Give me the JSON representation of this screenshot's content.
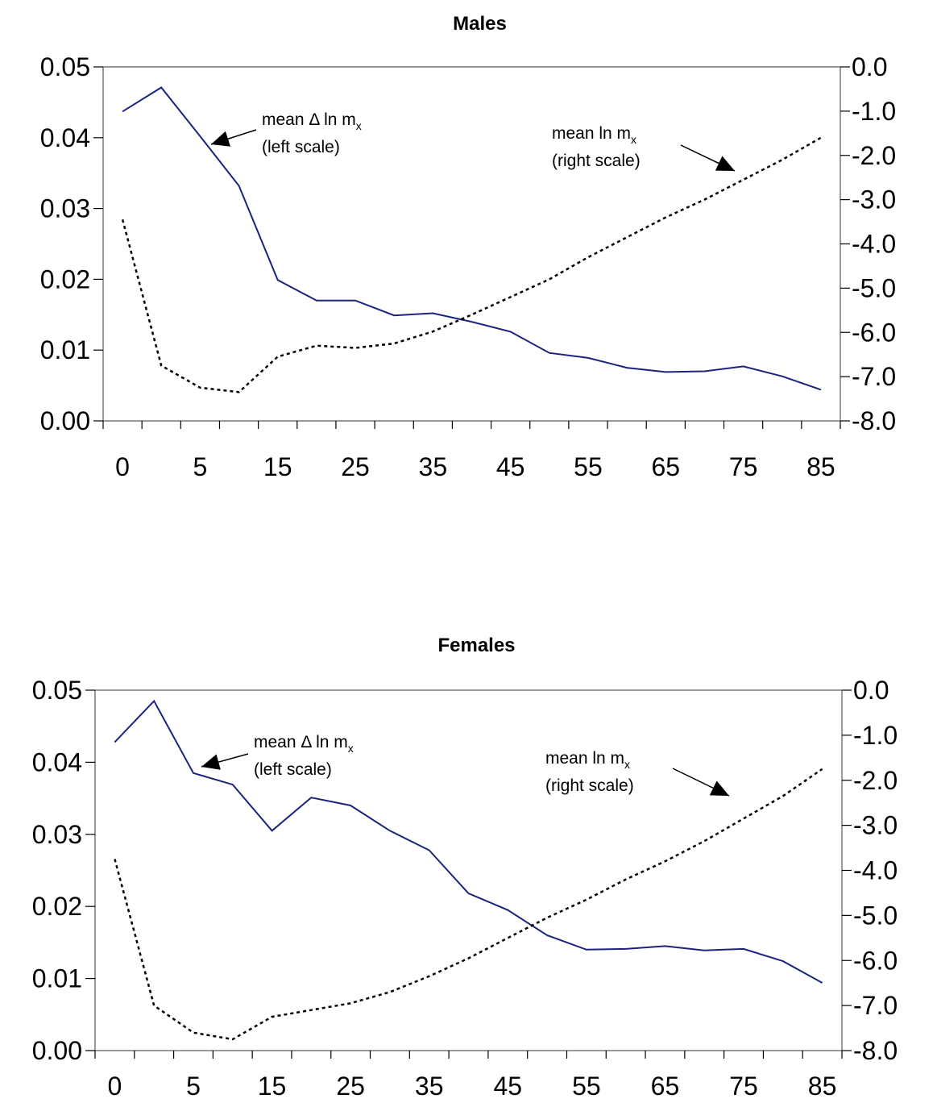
{
  "chart_data": [
    {
      "type": "line",
      "title": "Males",
      "x": [
        0,
        1,
        5,
        10,
        15,
        20,
        25,
        30,
        35,
        40,
        45,
        50,
        55,
        60,
        65,
        70,
        75,
        80,
        85
      ],
      "x_tick_labels": [
        "0",
        "5",
        "15",
        "25",
        "35",
        "45",
        "55",
        "65",
        "75",
        "85"
      ],
      "y_left_ticks": [
        "0.00",
        "0.01",
        "0.02",
        "0.03",
        "0.04",
        "0.05"
      ],
      "y_right_ticks": [
        "0.0",
        "-1.0",
        "-2.0",
        "-3.0",
        "-4.0",
        "-5.0",
        "-6.0",
        "-7.0",
        "-8.0"
      ],
      "ylim_left": [
        0,
        0.05
      ],
      "ylim_right": [
        -8,
        0
      ],
      "series": [
        {
          "key": "delta",
          "axis": "left",
          "color": "#1a237e",
          "style": "solid",
          "values": [
            0.0437,
            0.0471,
            0.0402,
            0.0332,
            0.0199,
            0.017,
            0.017,
            0.0149,
            0.0152,
            0.014,
            0.0126,
            0.0096,
            0.0089,
            0.0075,
            0.0069,
            0.007,
            0.0077,
            0.0063,
            0.0044
          ]
        },
        {
          "key": "level",
          "axis": "right",
          "color": "#000000",
          "style": "dotted",
          "values": [
            -3.45,
            -6.75,
            -7.25,
            -7.35,
            -6.55,
            -6.3,
            -6.35,
            -6.25,
            -5.98,
            -5.6,
            -5.2,
            -4.8,
            -4.3,
            -3.85,
            -3.4,
            -3.0,
            -2.55,
            -2.1,
            -1.6
          ]
        }
      ],
      "annotations": [
        {
          "line1": "mean Δ ln m",
          "subscript": "x",
          "line2": "(left scale)"
        },
        {
          "line1": "mean ln m",
          "subscript": "x",
          "line2": "(right scale)"
        }
      ]
    },
    {
      "type": "line",
      "title": "Females",
      "x": [
        0,
        1,
        5,
        10,
        15,
        20,
        25,
        30,
        35,
        40,
        45,
        50,
        55,
        60,
        65,
        70,
        75,
        80,
        85
      ],
      "x_tick_labels": [
        "0",
        "5",
        "15",
        "25",
        "35",
        "45",
        "55",
        "65",
        "75",
        "85"
      ],
      "y_left_ticks": [
        "0.00",
        "0.01",
        "0.02",
        "0.03",
        "0.04",
        "0.05"
      ],
      "y_right_ticks": [
        "0.0",
        "-1.0",
        "-2.0",
        "-3.0",
        "-4.0",
        "-5.0",
        "-6.0",
        "-7.0",
        "-8.0"
      ],
      "ylim_left": [
        0,
        0.05
      ],
      "ylim_right": [
        -8,
        0
      ],
      "series": [
        {
          "key": "delta",
          "axis": "left",
          "color": "#1a237e",
          "style": "solid",
          "values": [
            0.0428,
            0.0485,
            0.0385,
            0.0369,
            0.0305,
            0.0351,
            0.034,
            0.0305,
            0.0278,
            0.0218,
            0.0195,
            0.016,
            0.014,
            0.0141,
            0.0145,
            0.0139,
            0.0141,
            0.0124,
            0.0094
          ]
        },
        {
          "key": "level",
          "axis": "right",
          "color": "#000000",
          "style": "dotted",
          "values": [
            -3.75,
            -7.0,
            -7.6,
            -7.75,
            -7.25,
            -7.1,
            -6.95,
            -6.7,
            -6.35,
            -5.95,
            -5.5,
            -5.05,
            -4.65,
            -4.2,
            -3.8,
            -3.35,
            -2.85,
            -2.35,
            -1.75
          ]
        }
      ],
      "annotations": [
        {
          "line1": "mean Δ ln m",
          "subscript": "x",
          "line2": "(left scale)"
        },
        {
          "line1": "mean ln m",
          "subscript": "x",
          "line2": "(right scale)"
        }
      ]
    }
  ]
}
